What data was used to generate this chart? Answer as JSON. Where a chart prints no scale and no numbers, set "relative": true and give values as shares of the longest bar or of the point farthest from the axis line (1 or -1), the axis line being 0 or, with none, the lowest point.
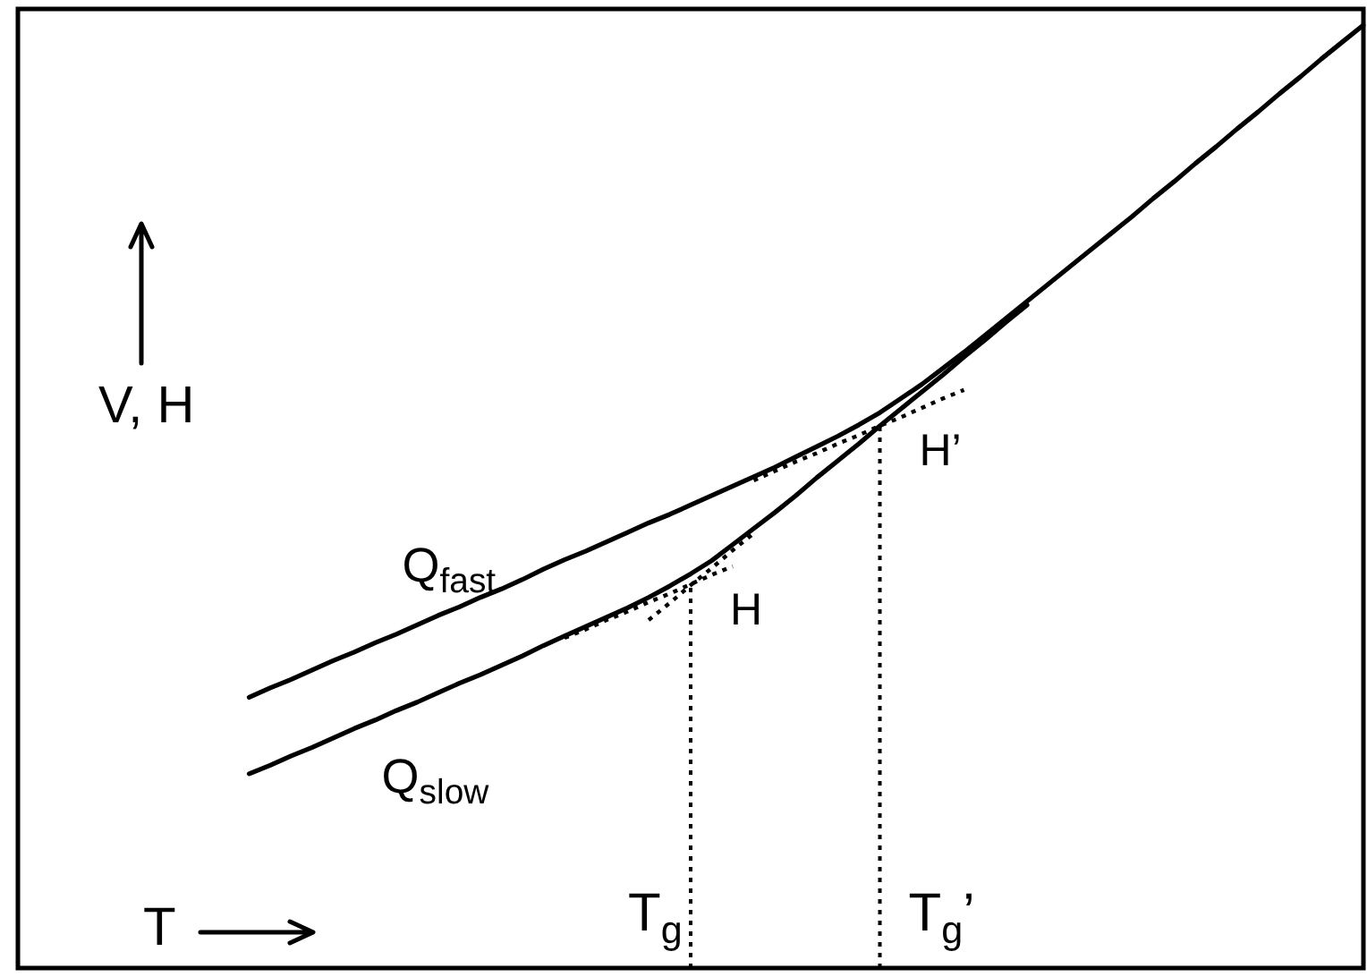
{
  "chart_data": {
    "type": "line",
    "relative": true,
    "xlabel": "T",
    "ylabel": "V, H",
    "marker": "none",
    "legend": false,
    "categories": [
      null,
      null,
      null,
      null,
      null,
      null,
      null,
      null,
      null,
      null,
      null,
      null,
      null,
      null,
      null,
      null,
      null,
      null,
      null,
      null,
      null,
      null,
      null,
      null,
      null,
      null,
      null,
      null,
      null,
      null,
      null,
      null,
      null,
      null,
      null,
      null,
      null,
      null,
      null,
      null,
      null,
      null,
      null,
      null,
      null,
      null,
      null,
      null,
      null,
      null,
      null,
      null,
      null,
      null,
      null,
      null,
      null,
      null,
      null,
      null,
      null,
      null,
      null,
      null,
      null
    ],
    "series": [
      {
        "name": "Q$_{fast}$",
        "color": "#000000",
        "line_style": "solid",
        "values": [
          null,
          null,
          null,
          null,
          null,
          null,
          null,
          null,
          null,
          null,
          null,
          0.287,
          0.297,
          0.306,
          0.316,
          0.326,
          0.335,
          0.345,
          0.354,
          0.364,
          0.374,
          0.383,
          0.393,
          0.402,
          0.412,
          0.423,
          0.433,
          0.442,
          0.452,
          0.462,
          0.472,
          0.481,
          0.491,
          0.501,
          0.511,
          0.521,
          0.531,
          0.542,
          0.553,
          0.564,
          0.576,
          0.589,
          0.604,
          0.619,
          0.636,
          0.653,
          0.671,
          0.689,
          0.707,
          0.725,
          0.743,
          0.761,
          0.779,
          0.797,
          0.816,
          0.834,
          0.853,
          0.871,
          0.89,
          0.908,
          0.927,
          0.945,
          0.964,
          0.982,
          1.0
        ]
      },
      {
        "name": "Q$_{slow}$",
        "color": "#000000",
        "line_style": "solid",
        "values": [
          null,
          null,
          null,
          null,
          null,
          null,
          null,
          null,
          null,
          null,
          null,
          0.206,
          0.215,
          0.225,
          0.234,
          0.244,
          0.254,
          0.263,
          0.273,
          0.282,
          0.292,
          0.302,
          0.311,
          0.321,
          0.331,
          0.342,
          0.352,
          0.362,
          0.372,
          0.382,
          0.393,
          0.405,
          0.418,
          0.432,
          0.449,
          0.466,
          0.483,
          0.501,
          0.52,
          0.538,
          0.556,
          0.575,
          0.593,
          0.611,
          0.629,
          0.648,
          0.666,
          0.685,
          0.703,
          null,
          null,
          null,
          null,
          null,
          null,
          null,
          null,
          null,
          null,
          null,
          null,
          null,
          null,
          null,
          null
        ]
      },
      {
        "color": "#000000",
        "line_style": "dotted",
        "values": [
          null,
          null,
          null,
          null,
          null,
          null,
          null,
          null,
          null,
          null,
          null,
          null,
          null,
          null,
          null,
          null,
          null,
          null,
          null,
          null,
          null,
          null,
          null,
          null,
          null,
          null,
          0.35,
          0.359,
          0.369,
          0.378,
          0.388,
          0.397,
          0.407,
          0.417,
          0.426,
          null,
          null,
          null,
          null,
          null,
          null,
          null,
          null,
          null,
          null,
          null,
          null,
          null,
          null,
          null,
          null,
          null,
          null,
          null,
          null,
          null,
          null,
          null,
          null,
          null,
          null,
          null,
          null,
          null,
          null
        ]
      },
      {
        "color": "#000000",
        "line_style": "dotted",
        "values": [
          null,
          null,
          null,
          null,
          null,
          null,
          null,
          null,
          null,
          null,
          null,
          null,
          null,
          null,
          null,
          null,
          null,
          null,
          null,
          null,
          null,
          null,
          null,
          null,
          null,
          null,
          null,
          null,
          null,
          null,
          0.369,
          0.387,
          0.406,
          0.424,
          0.443,
          0.461,
          null,
          null,
          null,
          null,
          null,
          null,
          null,
          null,
          null,
          null,
          null,
          null,
          null,
          null,
          null,
          null,
          null,
          null,
          null,
          null,
          null,
          null,
          null,
          null,
          null,
          null,
          null,
          null,
          null
        ]
      },
      {
        "color": "#000000",
        "line_style": "dotted",
        "values": [
          null,
          null,
          null,
          null,
          null,
          null,
          null,
          null,
          null,
          null,
          null,
          null,
          null,
          null,
          null,
          null,
          null,
          null,
          null,
          null,
          null,
          null,
          null,
          null,
          null,
          null,
          null,
          null,
          null,
          null,
          null,
          null,
          null,
          null,
          null,
          0.517,
          0.527,
          0.537,
          0.546,
          0.556,
          0.565,
          0.575,
          0.584,
          0.594,
          0.604,
          0.613,
          null,
          null,
          null,
          null,
          null,
          null,
          null,
          null,
          null,
          null,
          null,
          null,
          null,
          null,
          null,
          null,
          null,
          null,
          null
        ]
      }
    ],
    "annotations": [
      "H",
      "T$_{g}$",
      "H’",
      "T$_{g}$’"
    ]
  }
}
